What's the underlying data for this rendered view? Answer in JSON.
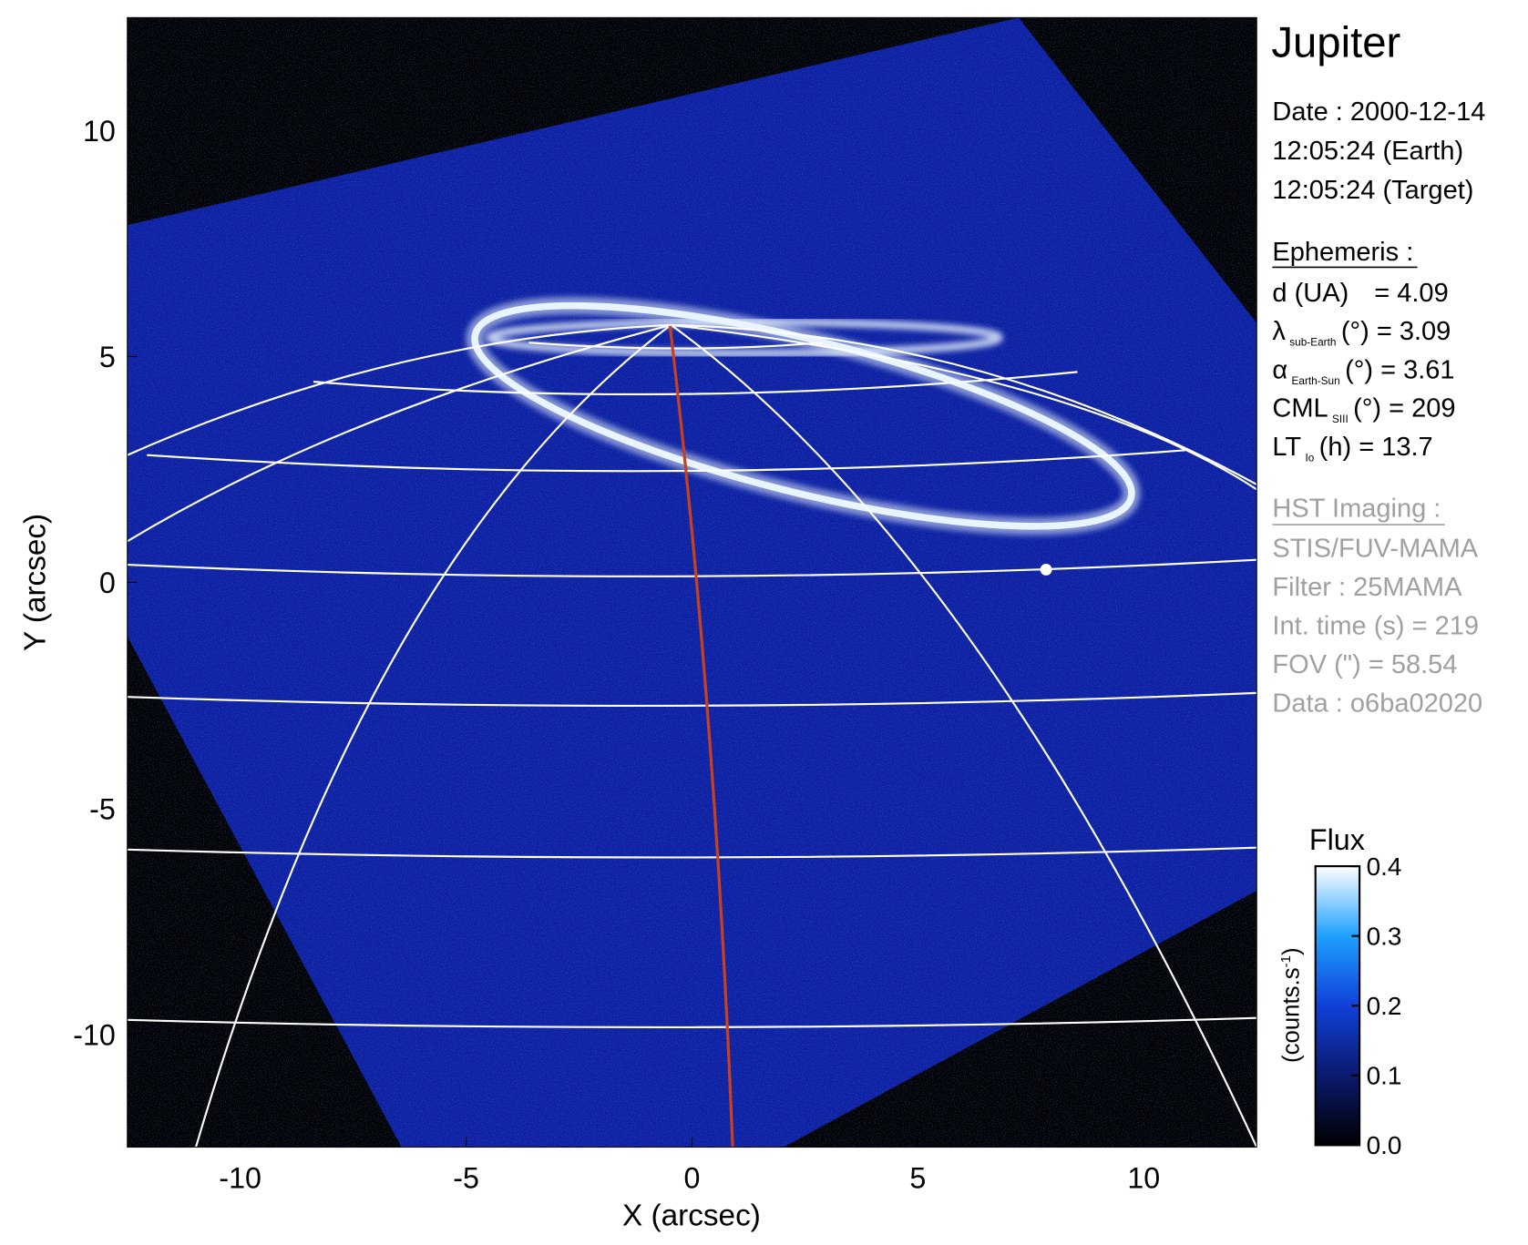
{
  "chart_data": {
    "type": "image",
    "xlabel": "X (arcsec)",
    "ylabel": "Y (arcsec)",
    "xlim": [
      -12.5,
      12.5
    ],
    "ylim": [
      -12.5,
      12.5
    ],
    "xticks": [
      -10,
      -5,
      0,
      5,
      10
    ],
    "yticks": [
      -10,
      -5,
      0,
      5,
      10
    ],
    "colorbar": {
      "title": "Flux",
      "unit": {
        "base": "(counts.s",
        "sup": "-1",
        "end": ")"
      },
      "clim": [
        0,
        0.4
      ],
      "ticks": [
        {
          "value": 0,
          "label": "0.0"
        },
        0.1,
        0.2,
        0.3,
        0.4
      ]
    }
  },
  "info": {
    "title": "Jupiter",
    "date": [
      "Date : 2000-12-14",
      "12:05:24 (Earth)",
      "12:05:24 (Target)"
    ],
    "ephemeris": {
      "heading": "Ephemeris :",
      "items": [
        {
          "symbol": "d (UA)",
          "text": "= 4.09"
        },
        {
          "symbol": "λ",
          "sub": "sub-Earth",
          "text": "(°) = 3.09"
        },
        {
          "symbol": "α",
          "sub": "Earth-Sun",
          "text": "(°) = 3.61"
        },
        {
          "symbol": "CML",
          "sub": "SIII",
          "text": "(°) = 209"
        },
        {
          "symbol": "LT",
          "sub": "Io",
          "text": "(h) = 13.7"
        }
      ]
    },
    "imaging": {
      "heading": "HST Imaging :",
      "lines": [
        "STIS/FUV-MAMA",
        "Filter : 25MAMA",
        "Int. time (s) = 219",
        "FOV (\") = 58.54",
        "Data : o6ba02020"
      ]
    }
  }
}
